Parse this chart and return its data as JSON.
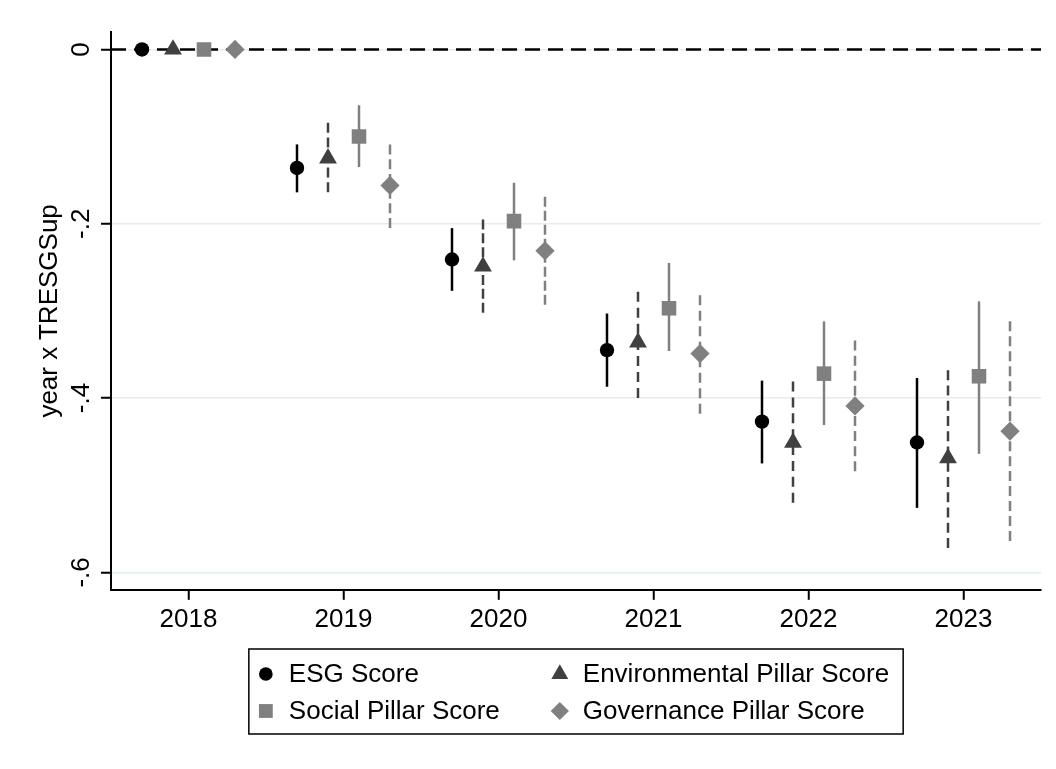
{
  "chart_data": {
    "type": "scatter",
    "ylabel": "year x TRESGSup",
    "xlim": [
      2017.5,
      2023.5
    ],
    "xticks": [
      2018,
      2019,
      2020,
      2021,
      2022,
      2023
    ],
    "ylim": [
      -0.62,
      0.02
    ],
    "yticks": [
      0,
      {
        "value": -0.2,
        "label": "-.2"
      },
      {
        "value": -0.4,
        "label": "-.4"
      },
      {
        "value": -0.6,
        "label": "-.6"
      }
    ],
    "grid": "y",
    "legend": "bottom",
    "ref_lines": [
      {
        "axis": "y",
        "value": 0,
        "color": "#000000",
        "line_style": "dashed"
      }
    ],
    "series": [
      {
        "name": "ESG Score",
        "color": "#000000",
        "marker": "circle",
        "x": [
          2017.7,
          2018.7,
          2019.7,
          2020.7,
          2021.7,
          2022.7
        ],
        "values": [
          0,
          -0.136,
          -0.241,
          -0.345,
          -0.427,
          -0.451
        ],
        "errors": [
          null,
          [
            -0.164,
            -0.109
          ],
          [
            -0.277,
            -0.205
          ],
          [
            -0.387,
            -0.303
          ],
          [
            -0.475,
            -0.38
          ],
          [
            -0.526,
            -0.377
          ]
        ]
      },
      {
        "name": "Environmental Pillar Score",
        "color": "#404040",
        "marker": "triangle",
        "line_style": "dashed",
        "x": [
          2017.9,
          2018.9,
          2019.9,
          2020.9,
          2021.9,
          2022.9
        ],
        "values": [
          0,
          -0.125,
          -0.249,
          -0.336,
          -0.451,
          -0.469
        ],
        "errors": [
          null,
          [
            -0.164,
            -0.084
          ],
          [
            -0.302,
            -0.195
          ],
          [
            -0.4,
            -0.278
          ],
          [
            -0.52,
            -0.381
          ],
          [
            -0.572,
            -0.368
          ]
        ]
      },
      {
        "name": "Social Pillar Score",
        "color": "#808080",
        "marker": "square",
        "x": [
          2018.1,
          2019.1,
          2020.1,
          2021.1,
          2022.1,
          2023.1
        ],
        "values": [
          0,
          -0.1,
          -0.197,
          -0.297,
          -0.372,
          -0.375
        ],
        "errors": [
          null,
          [
            -0.135,
            -0.064
          ],
          [
            -0.242,
            -0.153
          ],
          [
            -0.346,
            -0.245
          ],
          [
            -0.431,
            -0.312
          ],
          [
            -0.464,
            -0.289
          ]
        ]
      },
      {
        "name": "Governance Pillar Score",
        "color": "#808080",
        "marker": "diamond",
        "line_style": "dashed",
        "x": [
          2018.3,
          2019.3,
          2020.3,
          2021.3,
          2022.3,
          2023.3
        ],
        "values": [
          0,
          -0.156,
          -0.231,
          -0.349,
          -0.409,
          -0.438
        ],
        "errors": [
          null,
          [
            -0.205,
            -0.109
          ],
          [
            -0.293,
            -0.169
          ],
          [
            -0.418,
            -0.282
          ],
          [
            -0.484,
            -0.334
          ],
          [
            -0.564,
            -0.312
          ]
        ]
      }
    ]
  }
}
